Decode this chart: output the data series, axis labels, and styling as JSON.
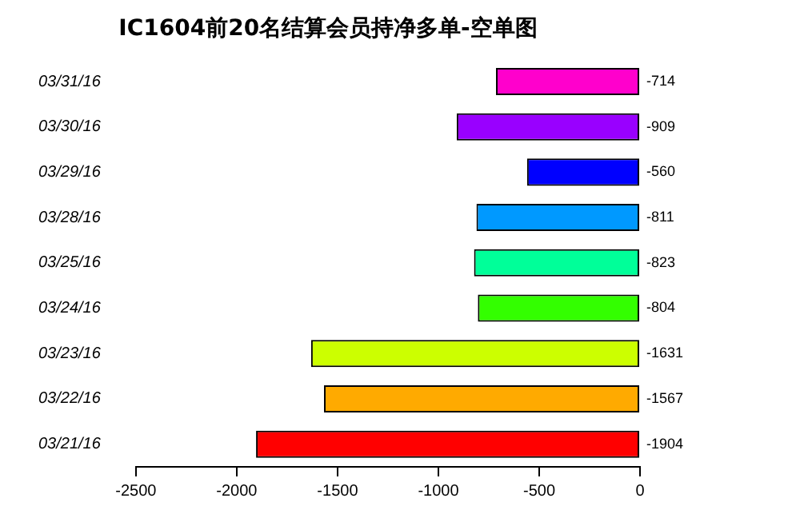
{
  "chart_data": {
    "type": "bar",
    "orientation": "horizontal",
    "title": "IC1604前20名结算会员持净多单-空单图",
    "categories": [
      "03/31/16",
      "03/30/16",
      "03/29/16",
      "03/28/16",
      "03/25/16",
      "03/24/16",
      "03/23/16",
      "03/22/16",
      "03/21/16"
    ],
    "values": [
      -714,
      -909,
      -560,
      -811,
      -823,
      -804,
      -1631,
      -1567,
      -1904
    ],
    "colors": [
      "#ff00cc",
      "#9900ff",
      "#0000ff",
      "#0099ff",
      "#00ff99",
      "#33ff00",
      "#ccff00",
      "#ffaa00",
      "#ff0000"
    ],
    "xlim": [
      -2500,
      0
    ],
    "xticks": [
      -2500,
      -2000,
      -1500,
      -1000,
      -500,
      0
    ],
    "data_labels": true,
    "grid": false,
    "legend": false
  }
}
